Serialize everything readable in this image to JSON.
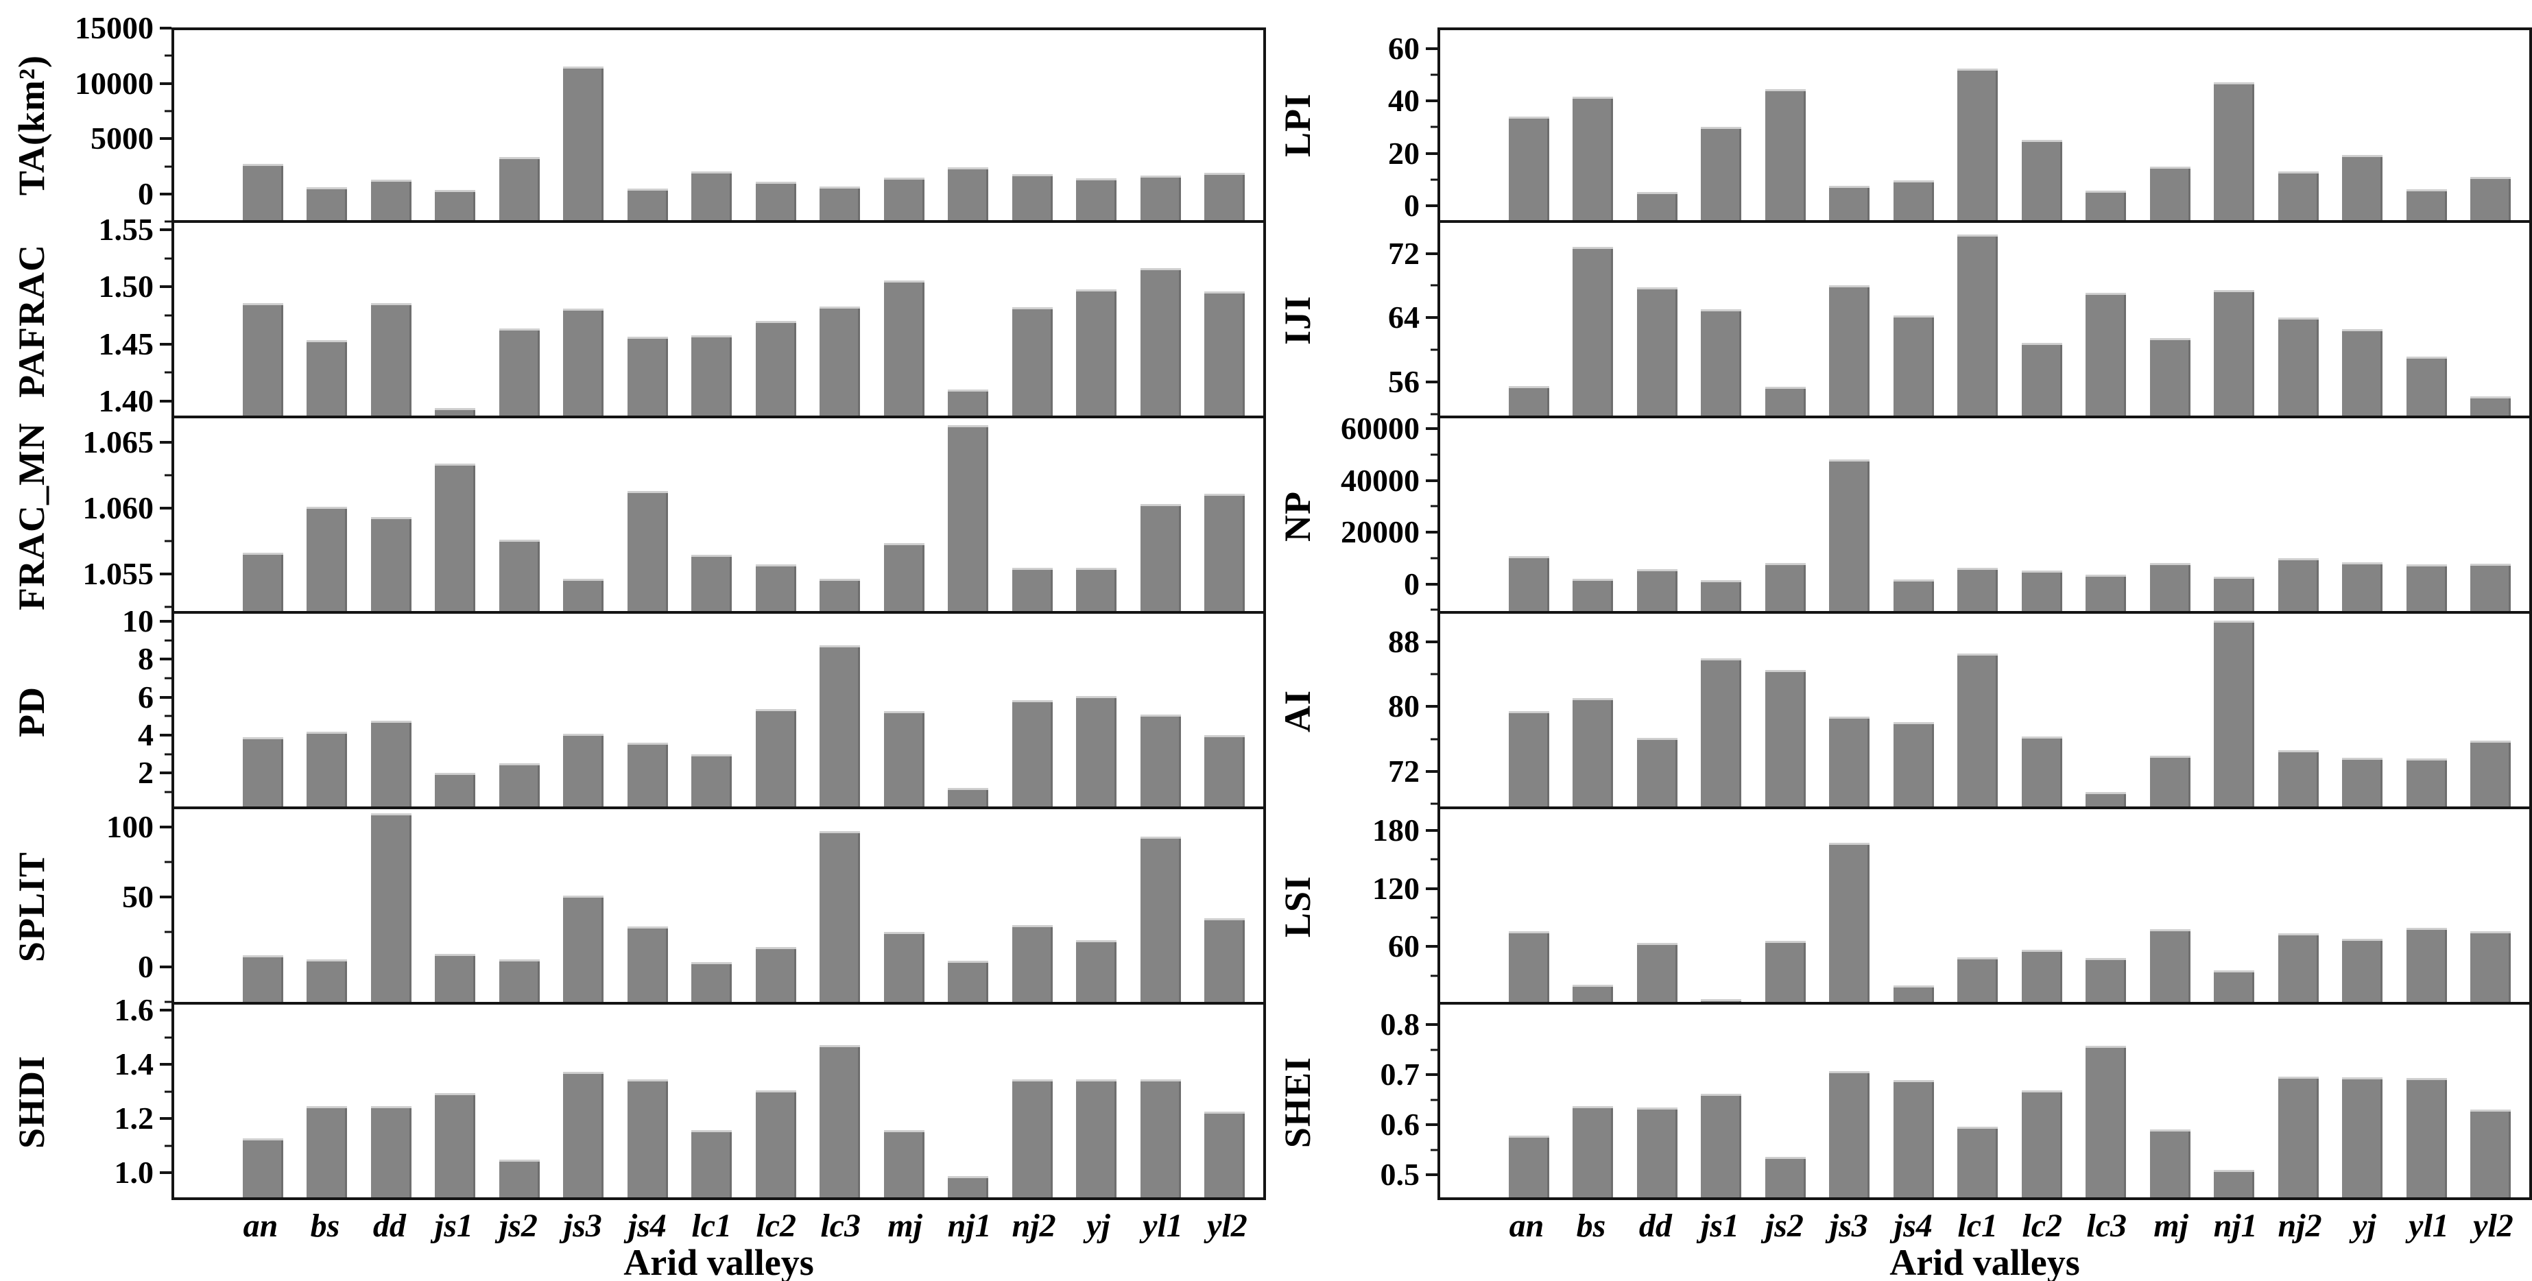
{
  "figure": {
    "x_axis_title": "Arid valleys",
    "bar_color": "#848484",
    "axis_color": "#141414",
    "background": "#ffffff"
  },
  "categories": [
    "an",
    "bs",
    "dd",
    "js1",
    "js2",
    "js3",
    "js4",
    "lc1",
    "lc2",
    "lc3",
    "mj",
    "nj1",
    "nj2",
    "yj",
    "yl1",
    "yl2"
  ],
  "chart_data": [
    {
      "type": "bar",
      "id": "TA",
      "ylabel": "TA(km²)",
      "column": "left",
      "row": 1,
      "xlabel": "Arid valleys",
      "yticks": [
        0,
        5000,
        10000,
        15000
      ],
      "ytick_labels": [
        "0",
        "5000",
        "10000",
        "15000"
      ],
      "ylim": [
        -2600,
        15050
      ],
      "values": [
        2600,
        450,
        1150,
        200,
        3250,
        11650,
        350,
        1900,
        950,
        550,
        1350,
        2300,
        1650,
        1300,
        1550,
        1800
      ]
    },
    {
      "type": "bar",
      "id": "PAFRAC",
      "ylabel": "PAFRAC",
      "column": "left",
      "row": 2,
      "xlabel": "Arid valleys",
      "yticks": [
        1.4,
        1.45,
        1.5,
        1.55
      ],
      "ytick_labels": [
        "1.40",
        "1.45",
        "1.50",
        "1.55"
      ],
      "ylim": [
        1.385,
        1.556
      ],
      "values": [
        1.485,
        1.452,
        1.485,
        1.392,
        1.462,
        1.48,
        1.455,
        1.456,
        1.469,
        1.482,
        1.505,
        1.408,
        1.481,
        1.497,
        1.516,
        1.495
      ]
    },
    {
      "type": "bar",
      "id": "FRAC_MN",
      "ylabel": "FRAC_MN",
      "column": "left",
      "row": 3,
      "xlabel": "Arid valleys",
      "yticks": [
        1.055,
        1.06,
        1.065
      ],
      "ytick_labels": [
        "1.055",
        "1.060",
        "1.065"
      ],
      "ylim": [
        1.052,
        1.0668
      ],
      "values": [
        1.0565,
        1.06,
        1.0592,
        1.0633,
        1.0575,
        1.0545,
        1.0612,
        1.0563,
        1.0556,
        1.0545,
        1.0572,
        1.0663,
        1.0553,
        1.0553,
        1.0602,
        1.061
      ]
    },
    {
      "type": "bar",
      "id": "PD",
      "ylabel": "PD",
      "column": "left",
      "row": 4,
      "xlabel": "Arid valleys",
      "yticks": [
        2,
        4,
        6,
        8,
        10
      ],
      "ytick_labels": [
        "2",
        "4",
        "6",
        "8",
        "10"
      ],
      "ylim": [
        0.1,
        10.4
      ],
      "values": [
        3.8,
        4.1,
        4.7,
        1.9,
        2.4,
        4.0,
        3.5,
        2.9,
        5.3,
        8.7,
        5.2,
        1.1,
        5.8,
        6.0,
        5.0,
        3.9
      ]
    },
    {
      "type": "bar",
      "id": "SPLIT",
      "ylabel": "SPLIT",
      "column": "left",
      "row": 5,
      "xlabel": "Arid valleys",
      "yticks": [
        0,
        50,
        100
      ],
      "ytick_labels": [
        "0",
        "50",
        "100"
      ],
      "ylim": [
        -27,
        113
      ],
      "values": [
        7,
        4,
        110,
        8,
        4,
        50,
        28,
        2,
        13,
        97,
        24,
        3,
        29,
        18,
        93,
        34
      ]
    },
    {
      "type": "bar",
      "id": "SHDI",
      "ylabel": "SHDI",
      "column": "left",
      "row": 6,
      "xlabel": "Arid valleys",
      "yticks": [
        1.0,
        1.2,
        1.4,
        1.6
      ],
      "ytick_labels": [
        "1.0",
        "1.2",
        "1.4",
        "1.6"
      ],
      "ylim": [
        0.9,
        1.62
      ],
      "values": [
        1.12,
        1.24,
        1.24,
        1.29,
        1.04,
        1.37,
        1.34,
        1.15,
        1.3,
        1.47,
        1.15,
        0.98,
        1.34,
        1.34,
        1.34,
        1.22
      ]
    },
    {
      "type": "bar",
      "id": "LPI",
      "ylabel": "LPI",
      "column": "right",
      "row": 1,
      "xlabel": "Arid valleys",
      "yticks": [
        0,
        20,
        40,
        60
      ],
      "ytick_labels": [
        "0",
        "20",
        "40",
        "60"
      ],
      "ylim": [
        -6.5,
        68
      ],
      "values": [
        34,
        42,
        4.5,
        30,
        45,
        7,
        9,
        53,
        25,
        5,
        14.5,
        47.5,
        12.5,
        19,
        5.5,
        10.5
      ]
    },
    {
      "type": "bar",
      "id": "IJI",
      "ylabel": "IJI",
      "column": "right",
      "row": 2,
      "xlabel": "Arid valleys",
      "yticks": [
        56,
        64,
        72
      ],
      "ytick_labels": [
        "56",
        "64",
        "72"
      ],
      "ylim": [
        51.5,
        75.8
      ],
      "values": [
        55.2,
        72.8,
        67.7,
        64.9,
        55.1,
        67.9,
        64.1,
        74.3,
        60.7,
        67.0,
        61.3,
        67.3,
        63.9,
        62.4,
        58.9,
        53.9
      ]
    },
    {
      "type": "bar",
      "id": "NP",
      "ylabel": "NP",
      "column": "right",
      "row": 3,
      "xlabel": "Arid valleys",
      "yticks": [
        0,
        20000,
        40000,
        60000
      ],
      "ytick_labels": [
        "0",
        "20000",
        "40000",
        "60000"
      ],
      "ylim": [
        -11500,
        64000
      ],
      "values": [
        10000,
        1200,
        5000,
        700,
        7300,
        48000,
        900,
        5300,
        4300,
        2700,
        7200,
        2000,
        9300,
        7700,
        6700,
        7000
      ]
    },
    {
      "type": "bar",
      "id": "AI",
      "ylabel": "AI",
      "column": "right",
      "row": 4,
      "xlabel": "Arid valleys",
      "yticks": [
        72,
        80,
        88
      ],
      "ytick_labels": [
        "72",
        "80",
        "88"
      ],
      "ylim": [
        67.3,
        91.5
      ],
      "values": [
        79.3,
        80.9,
        75.9,
        85.9,
        84.4,
        78.6,
        77.9,
        86.5,
        76.1,
        69.1,
        73.7,
        90.6,
        74.4,
        73.4,
        73.3,
        75.6
      ]
    },
    {
      "type": "bar",
      "id": "LSI",
      "ylabel": "LSI",
      "column": "right",
      "row": 5,
      "xlabel": "Arid valleys",
      "yticks": [
        60,
        120,
        180
      ],
      "ytick_labels": [
        "60",
        "120",
        "180"
      ],
      "ylim": [
        0,
        202
      ],
      "values": [
        74,
        18,
        62,
        3,
        64,
        167,
        17,
        47,
        55,
        46,
        76,
        33,
        72,
        66,
        78,
        74
      ]
    },
    {
      "type": "bar",
      "id": "SHEI",
      "ylabel": "SHEI",
      "column": "right",
      "row": 6,
      "xlabel": "Arid valleys",
      "yticks": [
        0.5,
        0.6,
        0.7,
        0.8
      ],
      "ytick_labels": [
        "0.5",
        "0.6",
        "0.7",
        "0.8"
      ],
      "ylim": [
        0.45,
        0.84
      ],
      "values": [
        0.575,
        0.635,
        0.632,
        0.66,
        0.532,
        0.705,
        0.688,
        0.593,
        0.667,
        0.757,
        0.588,
        0.505,
        0.694,
        0.693,
        0.692,
        0.628
      ]
    }
  ]
}
